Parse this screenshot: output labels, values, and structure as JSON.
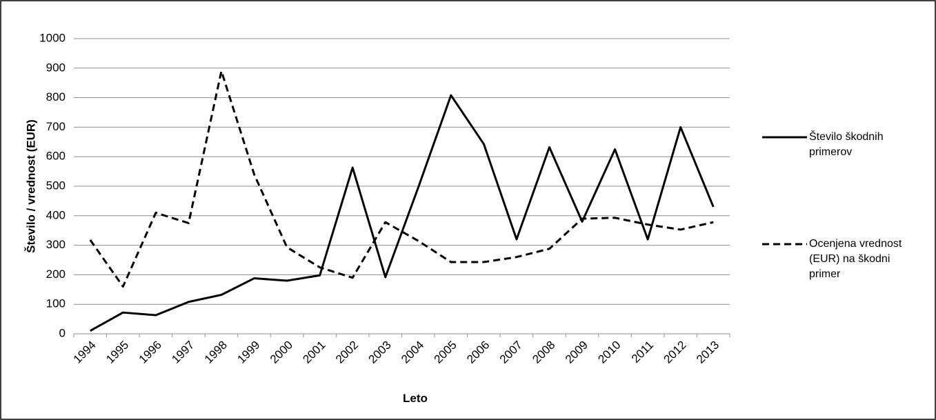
{
  "chart_data": {
    "type": "line",
    "x_label": "Leto",
    "y_label": "Število / vrednost (EUR)",
    "categories": [
      "1994",
      "1995",
      "1996",
      "1997",
      "1998",
      "1999",
      "2000",
      "2001",
      "2002",
      "2003",
      "2004",
      "2005",
      "2006",
      "2007",
      "2008",
      "2009",
      "2010",
      "2011",
      "2012",
      "2013"
    ],
    "series": [
      {
        "name": "Število škodnih primerov",
        "color": "#000000",
        "dash": false,
        "values": [
          10,
          72,
          63,
          108,
          132,
          188,
          180,
          198,
          563,
          192,
          495,
          808,
          643,
          320,
          632,
          380,
          625,
          320,
          700,
          430
        ]
      },
      {
        "name": "Ocenjena vrednost (EUR) na škodni primer",
        "color": "#000000",
        "dash": true,
        "values": [
          318,
          160,
          410,
          375,
          890,
          540,
          293,
          225,
          190,
          378,
          315,
          243,
          243,
          260,
          288,
          390,
          393,
          370,
          353,
          378
        ]
      }
    ],
    "ylim": [
      0,
      1000
    ],
    "yticks": [
      0,
      100,
      200,
      300,
      400,
      500,
      600,
      700,
      800,
      900,
      1000
    ],
    "grid": true,
    "legend": "right"
  }
}
